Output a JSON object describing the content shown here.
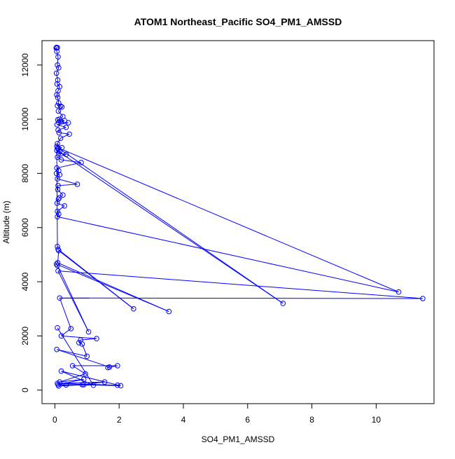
{
  "chart_data": {
    "type": "line",
    "title": "ATOM1 Northeast_Pacific SO4_PM1_AMSSD",
    "xlabel": "SO4_PM1_AMSSD",
    "ylabel": "Altitude (m)",
    "xlim": [
      -0.4,
      11.8
    ],
    "ylim": [
      -500,
      12900
    ],
    "x_ticks": [
      0,
      2,
      4,
      6,
      8,
      10
    ],
    "y_ticks": [
      0,
      2000,
      4000,
      6000,
      8000,
      10000,
      12000
    ],
    "grid": false,
    "legend": "none",
    "line_color": "#0000ff",
    "marker": "open-circle",
    "series": [
      {
        "x": [
          0.05,
          0.08,
          0.04,
          0.06,
          0.1,
          0.08,
          0.12,
          0.05,
          0.09,
          0.07,
          0.15,
          0.1,
          0.06,
          0.09,
          0.12,
          0.08,
          0.18,
          0.22,
          0.11,
          0.25,
          0.14,
          0.09,
          0.3,
          0.2,
          0.12,
          0.42,
          0.07,
          0.35,
          0.1,
          0.13,
          0.45,
          0.18,
          0.08,
          0.06,
          0.22,
          0.1,
          0.15,
          0.12,
          0.35,
          0.08,
          0.2,
          0.82,
          0.06,
          0.12,
          0.05,
          0.15,
          0.08,
          0.7,
          0.1,
          0.09,
          0.25,
          0.14,
          0.11,
          0.07,
          0.3,
          0.08,
          0.12,
          0.08,
          10.7,
          0.09,
          7.1,
          0.06,
          0.08,
          0.1,
          2.45,
          0.12,
          0.09,
          3.55,
          0.05,
          0.08,
          1.05,
          0.1,
          11.45,
          0.15,
          0.5,
          0.2,
          1.3,
          0.8,
          0.75,
          0.85,
          1.0,
          0.06,
          1.7,
          1.65,
          1.95,
          0.55,
          0.95,
          0.15,
          0.9,
          0.1,
          0.85,
          1.55,
          0.08,
          1.95,
          0.35,
          0.12,
          0.9,
          2.05,
          0.2,
          1.2,
          0.08
        ],
        "y": [
          12650,
          12640,
          12630,
          12500,
          12300,
          12000,
          11900,
          11700,
          11450,
          11300,
          11200,
          11050,
          10900,
          10800,
          10600,
          10500,
          10480,
          10450,
          10300,
          10100,
          10000,
          9980,
          9950,
          9900,
          9880,
          9870,
          9800,
          9700,
          9600,
          9500,
          9450,
          9300,
          9100,
          9000,
          8950,
          8900,
          8800,
          8750,
          8700,
          8600,
          8500,
          8400,
          8200,
          8100,
          8000,
          7950,
          7800,
          7600,
          7550,
          7400,
          7200,
          7100,
          7050,
          6900,
          6800,
          6600,
          6500,
          6400,
          3620,
          8950,
          3200,
          8850,
          5300,
          5200,
          3000,
          5150,
          4700,
          2900,
          4650,
          4600,
          2150,
          4400,
          3380,
          3400,
          2270,
          2000,
          1900,
          1850,
          1750,
          1700,
          1250,
          1500,
          850,
          830,
          900,
          900,
          600,
          300,
          400,
          200,
          200,
          300,
          250,
          180,
          190,
          150,
          200,
          160,
          700,
          180,
          2300
        ]
      }
    ]
  }
}
